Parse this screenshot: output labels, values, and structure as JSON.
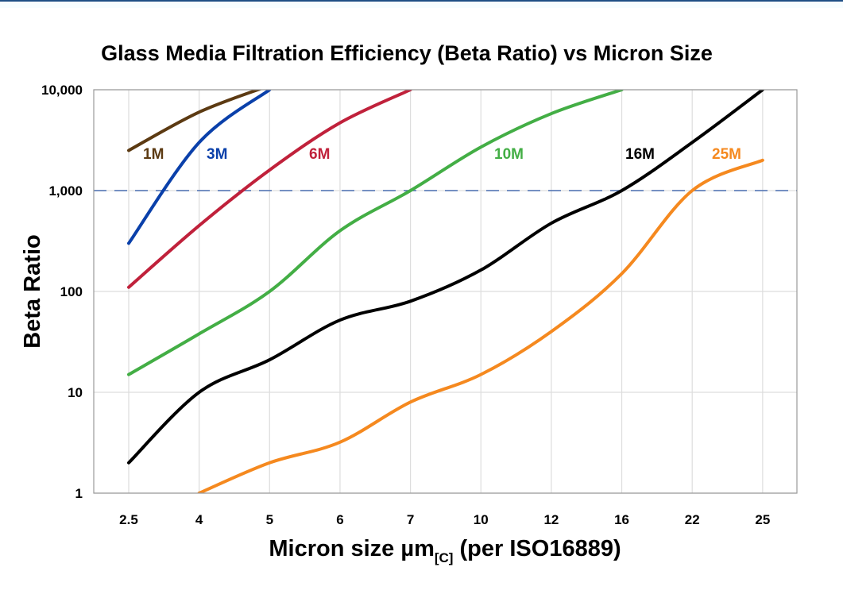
{
  "chart_data": {
    "type": "line",
    "title": "Glass Media Filtration Efficiency (Beta Ratio) vs Micron Size",
    "xlabel_main": "Micron size µm",
    "xlabel_sub": "[C]",
    "xlabel_tail": " (per ISO16889)",
    "ylabel": "Beta Ratio",
    "y_scale": "log",
    "ylim": [
      1,
      10000
    ],
    "y_ticks": [
      "1",
      "10",
      "100",
      "1,000",
      "10,000"
    ],
    "y_tick_values": [
      1,
      10,
      100,
      1000,
      10000
    ],
    "categories": [
      "2.5",
      "4",
      "5",
      "6",
      "7",
      "10",
      "12",
      "16",
      "22",
      "25"
    ],
    "grid": true,
    "reference_line": {
      "value": 1000,
      "style": "dashed",
      "color": "#4a6fb0"
    },
    "series": [
      {
        "name": "1M",
        "color": "#5c3a12",
        "values": [
          2500,
          6000,
          11000,
          null,
          null,
          null,
          null,
          null,
          null,
          null
        ]
      },
      {
        "name": "3M",
        "color": "#0a40aa",
        "values": [
          300,
          3000,
          10000,
          null,
          null,
          null,
          null,
          null,
          null,
          null
        ]
      },
      {
        "name": "6M",
        "color": "#c0213b",
        "values": [
          110,
          450,
          1600,
          4700,
          10000,
          null,
          null,
          null,
          null,
          null
        ]
      },
      {
        "name": "10M",
        "color": "#43ae45",
        "values": [
          15,
          38,
          100,
          400,
          1000,
          2700,
          5800,
          10000,
          null,
          null
        ]
      },
      {
        "name": "16M",
        "color": "#000000",
        "values": [
          2,
          10,
          21,
          52,
          80,
          163,
          475,
          1000,
          3000,
          10000
        ]
      },
      {
        "name": "25M",
        "color": "#f5891f",
        "values": [
          null,
          1,
          2,
          3.2,
          8,
          15,
          40,
          150,
          1000,
          2000
        ]
      }
    ]
  }
}
